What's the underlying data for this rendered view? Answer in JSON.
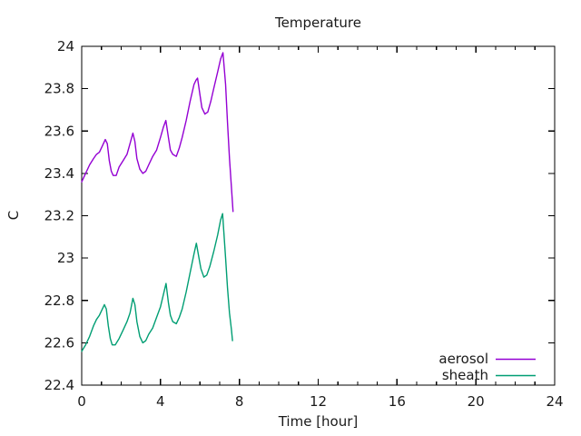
{
  "title": "Temperature",
  "colors": {
    "background": "#ffffff",
    "axis": "#000000",
    "text": "#1a1a1a",
    "aerosol": "#9400d3",
    "sheath": "#009e73"
  },
  "legend": {
    "position": "bottom-right-inside",
    "entries": [
      {
        "label": "aerosol",
        "color": "#9400d3"
      },
      {
        "label": "sheath",
        "color": "#009e73"
      }
    ]
  },
  "chart_data": {
    "type": "line",
    "title": "Temperature",
    "xlabel": "Time [hour]",
    "ylabel": "C",
    "xlim": [
      0,
      24
    ],
    "ylim": [
      22.4,
      24
    ],
    "grid": false,
    "x_major_ticks": [
      0,
      4,
      8,
      12,
      16,
      20,
      24
    ],
    "x_minor_ticks": [
      1,
      2,
      3,
      5,
      6,
      7,
      9,
      10,
      11,
      13,
      14,
      15,
      17,
      18,
      19,
      21,
      22,
      23
    ],
    "y_major_ticks": [
      22.4,
      22.6,
      22.8,
      23,
      23.2,
      23.4,
      23.6,
      23.8,
      24
    ],
    "legend_position": "bottom-right-inside",
    "series": [
      {
        "name": "aerosol",
        "color": "#9400d3",
        "points": [
          [
            0.0,
            23.36
          ],
          [
            0.2,
            23.4
          ],
          [
            0.4,
            23.44
          ],
          [
            0.6,
            23.47
          ],
          [
            0.75,
            23.49
          ],
          [
            0.9,
            23.5
          ],
          [
            1.05,
            23.53
          ],
          [
            1.2,
            23.56
          ],
          [
            1.3,
            23.54
          ],
          [
            1.4,
            23.46
          ],
          [
            1.5,
            23.41
          ],
          [
            1.6,
            23.39
          ],
          [
            1.75,
            23.39
          ],
          [
            1.9,
            23.43
          ],
          [
            2.1,
            23.46
          ],
          [
            2.3,
            23.49
          ],
          [
            2.45,
            23.54
          ],
          [
            2.6,
            23.59
          ],
          [
            2.7,
            23.55
          ],
          [
            2.8,
            23.47
          ],
          [
            2.95,
            23.42
          ],
          [
            3.1,
            23.4
          ],
          [
            3.25,
            23.41
          ],
          [
            3.4,
            23.44
          ],
          [
            3.6,
            23.48
          ],
          [
            3.8,
            23.51
          ],
          [
            4.0,
            23.57
          ],
          [
            4.15,
            23.62
          ],
          [
            4.27,
            23.65
          ],
          [
            4.4,
            23.57
          ],
          [
            4.5,
            23.51
          ],
          [
            4.62,
            23.49
          ],
          [
            4.8,
            23.48
          ],
          [
            4.95,
            23.52
          ],
          [
            5.1,
            23.57
          ],
          [
            5.3,
            23.65
          ],
          [
            5.5,
            23.74
          ],
          [
            5.7,
            23.82
          ],
          [
            5.8,
            23.84
          ],
          [
            5.88,
            23.85
          ],
          [
            6.0,
            23.77
          ],
          [
            6.1,
            23.71
          ],
          [
            6.25,
            23.68
          ],
          [
            6.4,
            23.69
          ],
          [
            6.55,
            23.74
          ],
          [
            6.7,
            23.8
          ],
          [
            6.9,
            23.88
          ],
          [
            7.05,
            23.94
          ],
          [
            7.17,
            23.97
          ],
          [
            7.3,
            23.82
          ],
          [
            7.4,
            23.64
          ],
          [
            7.5,
            23.47
          ],
          [
            7.6,
            23.33
          ],
          [
            7.68,
            23.22
          ]
        ]
      },
      {
        "name": "sheath",
        "color": "#009e73",
        "points": [
          [
            0.0,
            22.56
          ],
          [
            0.2,
            22.59
          ],
          [
            0.4,
            22.63
          ],
          [
            0.6,
            22.68
          ],
          [
            0.75,
            22.71
          ],
          [
            0.9,
            22.73
          ],
          [
            1.05,
            22.76
          ],
          [
            1.15,
            22.78
          ],
          [
            1.25,
            22.76
          ],
          [
            1.35,
            22.68
          ],
          [
            1.45,
            22.62
          ],
          [
            1.55,
            22.59
          ],
          [
            1.7,
            22.59
          ],
          [
            1.9,
            22.62
          ],
          [
            2.1,
            22.66
          ],
          [
            2.3,
            22.7
          ],
          [
            2.45,
            22.74
          ],
          [
            2.6,
            22.81
          ],
          [
            2.7,
            22.78
          ],
          [
            2.8,
            22.7
          ],
          [
            2.95,
            22.63
          ],
          [
            3.1,
            22.6
          ],
          [
            3.25,
            22.61
          ],
          [
            3.4,
            22.64
          ],
          [
            3.6,
            22.67
          ],
          [
            3.8,
            22.72
          ],
          [
            4.0,
            22.77
          ],
          [
            4.15,
            22.83
          ],
          [
            4.28,
            22.88
          ],
          [
            4.4,
            22.79
          ],
          [
            4.5,
            22.73
          ],
          [
            4.62,
            22.7
          ],
          [
            4.8,
            22.69
          ],
          [
            4.95,
            22.72
          ],
          [
            5.1,
            22.76
          ],
          [
            5.3,
            22.84
          ],
          [
            5.5,
            22.93
          ],
          [
            5.7,
            23.02
          ],
          [
            5.82,
            23.07
          ],
          [
            5.95,
            23.0
          ],
          [
            6.05,
            22.95
          ],
          [
            6.2,
            22.91
          ],
          [
            6.35,
            22.92
          ],
          [
            6.5,
            22.96
          ],
          [
            6.7,
            23.03
          ],
          [
            6.9,
            23.11
          ],
          [
            7.05,
            23.18
          ],
          [
            7.15,
            23.21
          ],
          [
            7.3,
            23.0
          ],
          [
            7.4,
            22.86
          ],
          [
            7.5,
            22.74
          ],
          [
            7.6,
            22.66
          ],
          [
            7.65,
            22.61
          ]
        ]
      }
    ]
  }
}
